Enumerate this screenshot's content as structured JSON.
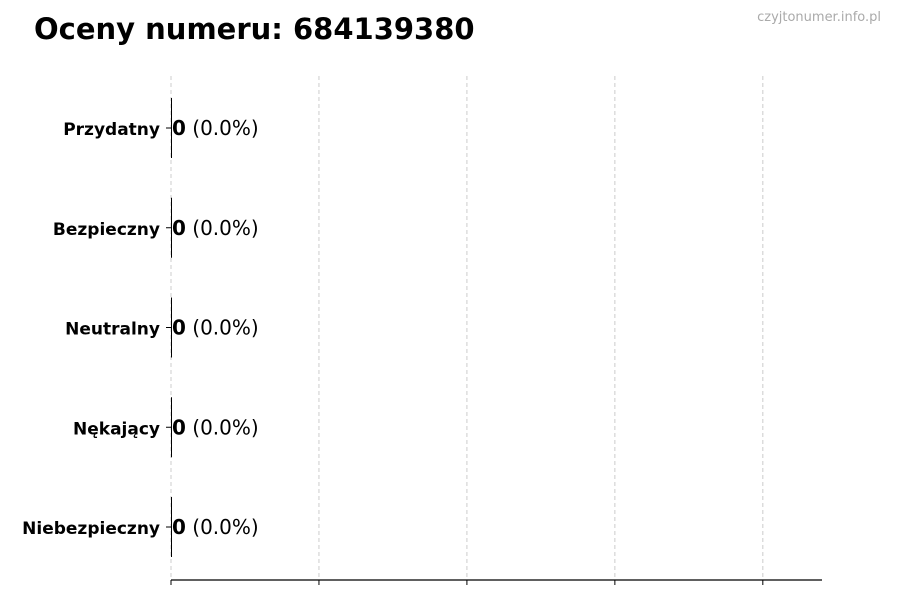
{
  "chart_data": {
    "type": "bar",
    "orientation": "horizontal",
    "title": "Oceny numeru: 684139380",
    "categories": [
      "Przydatny",
      "Bezpieczny",
      "Neutralny",
      "Nękający",
      "Niebezpieczny"
    ],
    "values": [
      0,
      0,
      0,
      0,
      0
    ],
    "data_labels": [
      {
        "count": "0",
        "percent": "(0.0%)"
      },
      {
        "count": "0",
        "percent": "(0.0%)"
      },
      {
        "count": "0",
        "percent": "(0.0%)"
      },
      {
        "count": "0",
        "percent": "(0.0%)"
      },
      {
        "count": "0",
        "percent": "(0.0%)"
      }
    ],
    "xlim": [
      0,
      4.4
    ],
    "xticks": [
      0,
      1,
      2,
      3,
      4
    ],
    "xtick_labels_shown": false,
    "grid": "vertical dashed",
    "bar_color": "#000000",
    "grid_color": "#cccccc"
  },
  "watermark": "czyjtonumer.info.pl"
}
